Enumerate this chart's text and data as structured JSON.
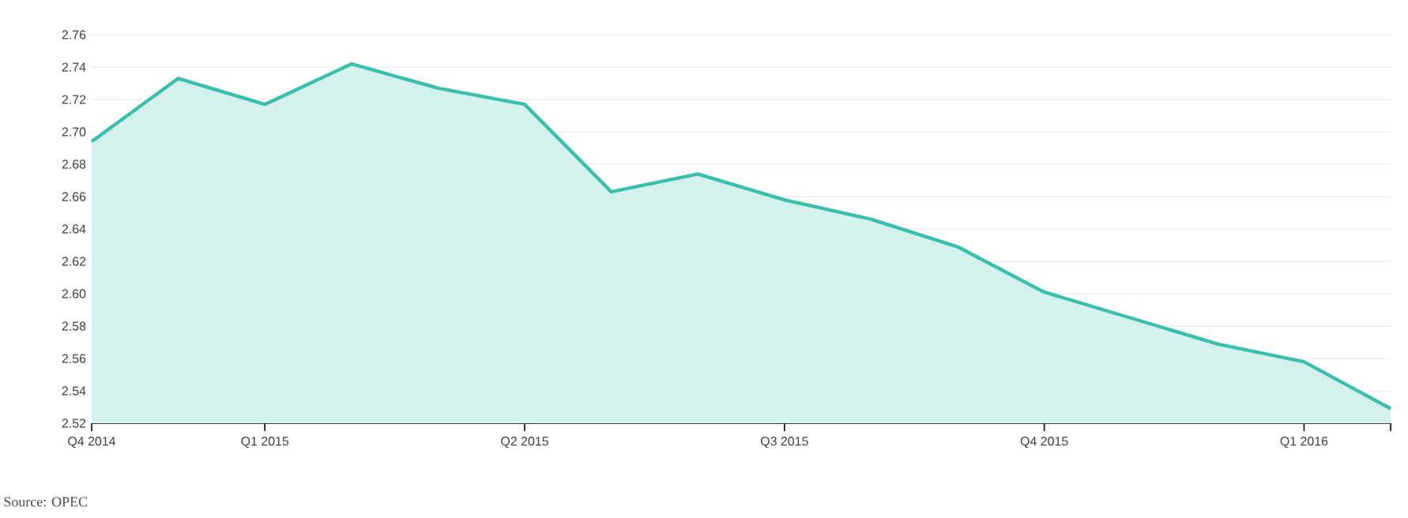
{
  "chart_data": {
    "type": "area",
    "categories": [
      "Q4 2014",
      null,
      "Q1 2015",
      null,
      null,
      "Q2 2015",
      null,
      null,
      "Q3 2015",
      null,
      null,
      "Q4 2015",
      null,
      null,
      "Q1 2016",
      null
    ],
    "series": [
      {
        "color": "#3bbfad",
        "values": [
          2.694,
          2.733,
          2.717,
          2.742,
          2.727,
          2.717,
          2.663,
          2.674,
          2.658,
          2.646,
          2.629,
          2.601,
          2.585,
          2.569,
          2.558,
          2.529
        ]
      }
    ],
    "ylim": [
      2.52,
      2.76
    ],
    "yticks": [
      2.52,
      2.54,
      2.56,
      2.58,
      {
        "value": 2.6,
        "label": "2.60"
      },
      2.62,
      2.64,
      2.66,
      2.68,
      {
        "value": 2.7,
        "label": "2.70"
      },
      2.72,
      2.74,
      2.76
    ],
    "grid": "y",
    "annotations": [
      "Source: OPEC"
    ]
  }
}
